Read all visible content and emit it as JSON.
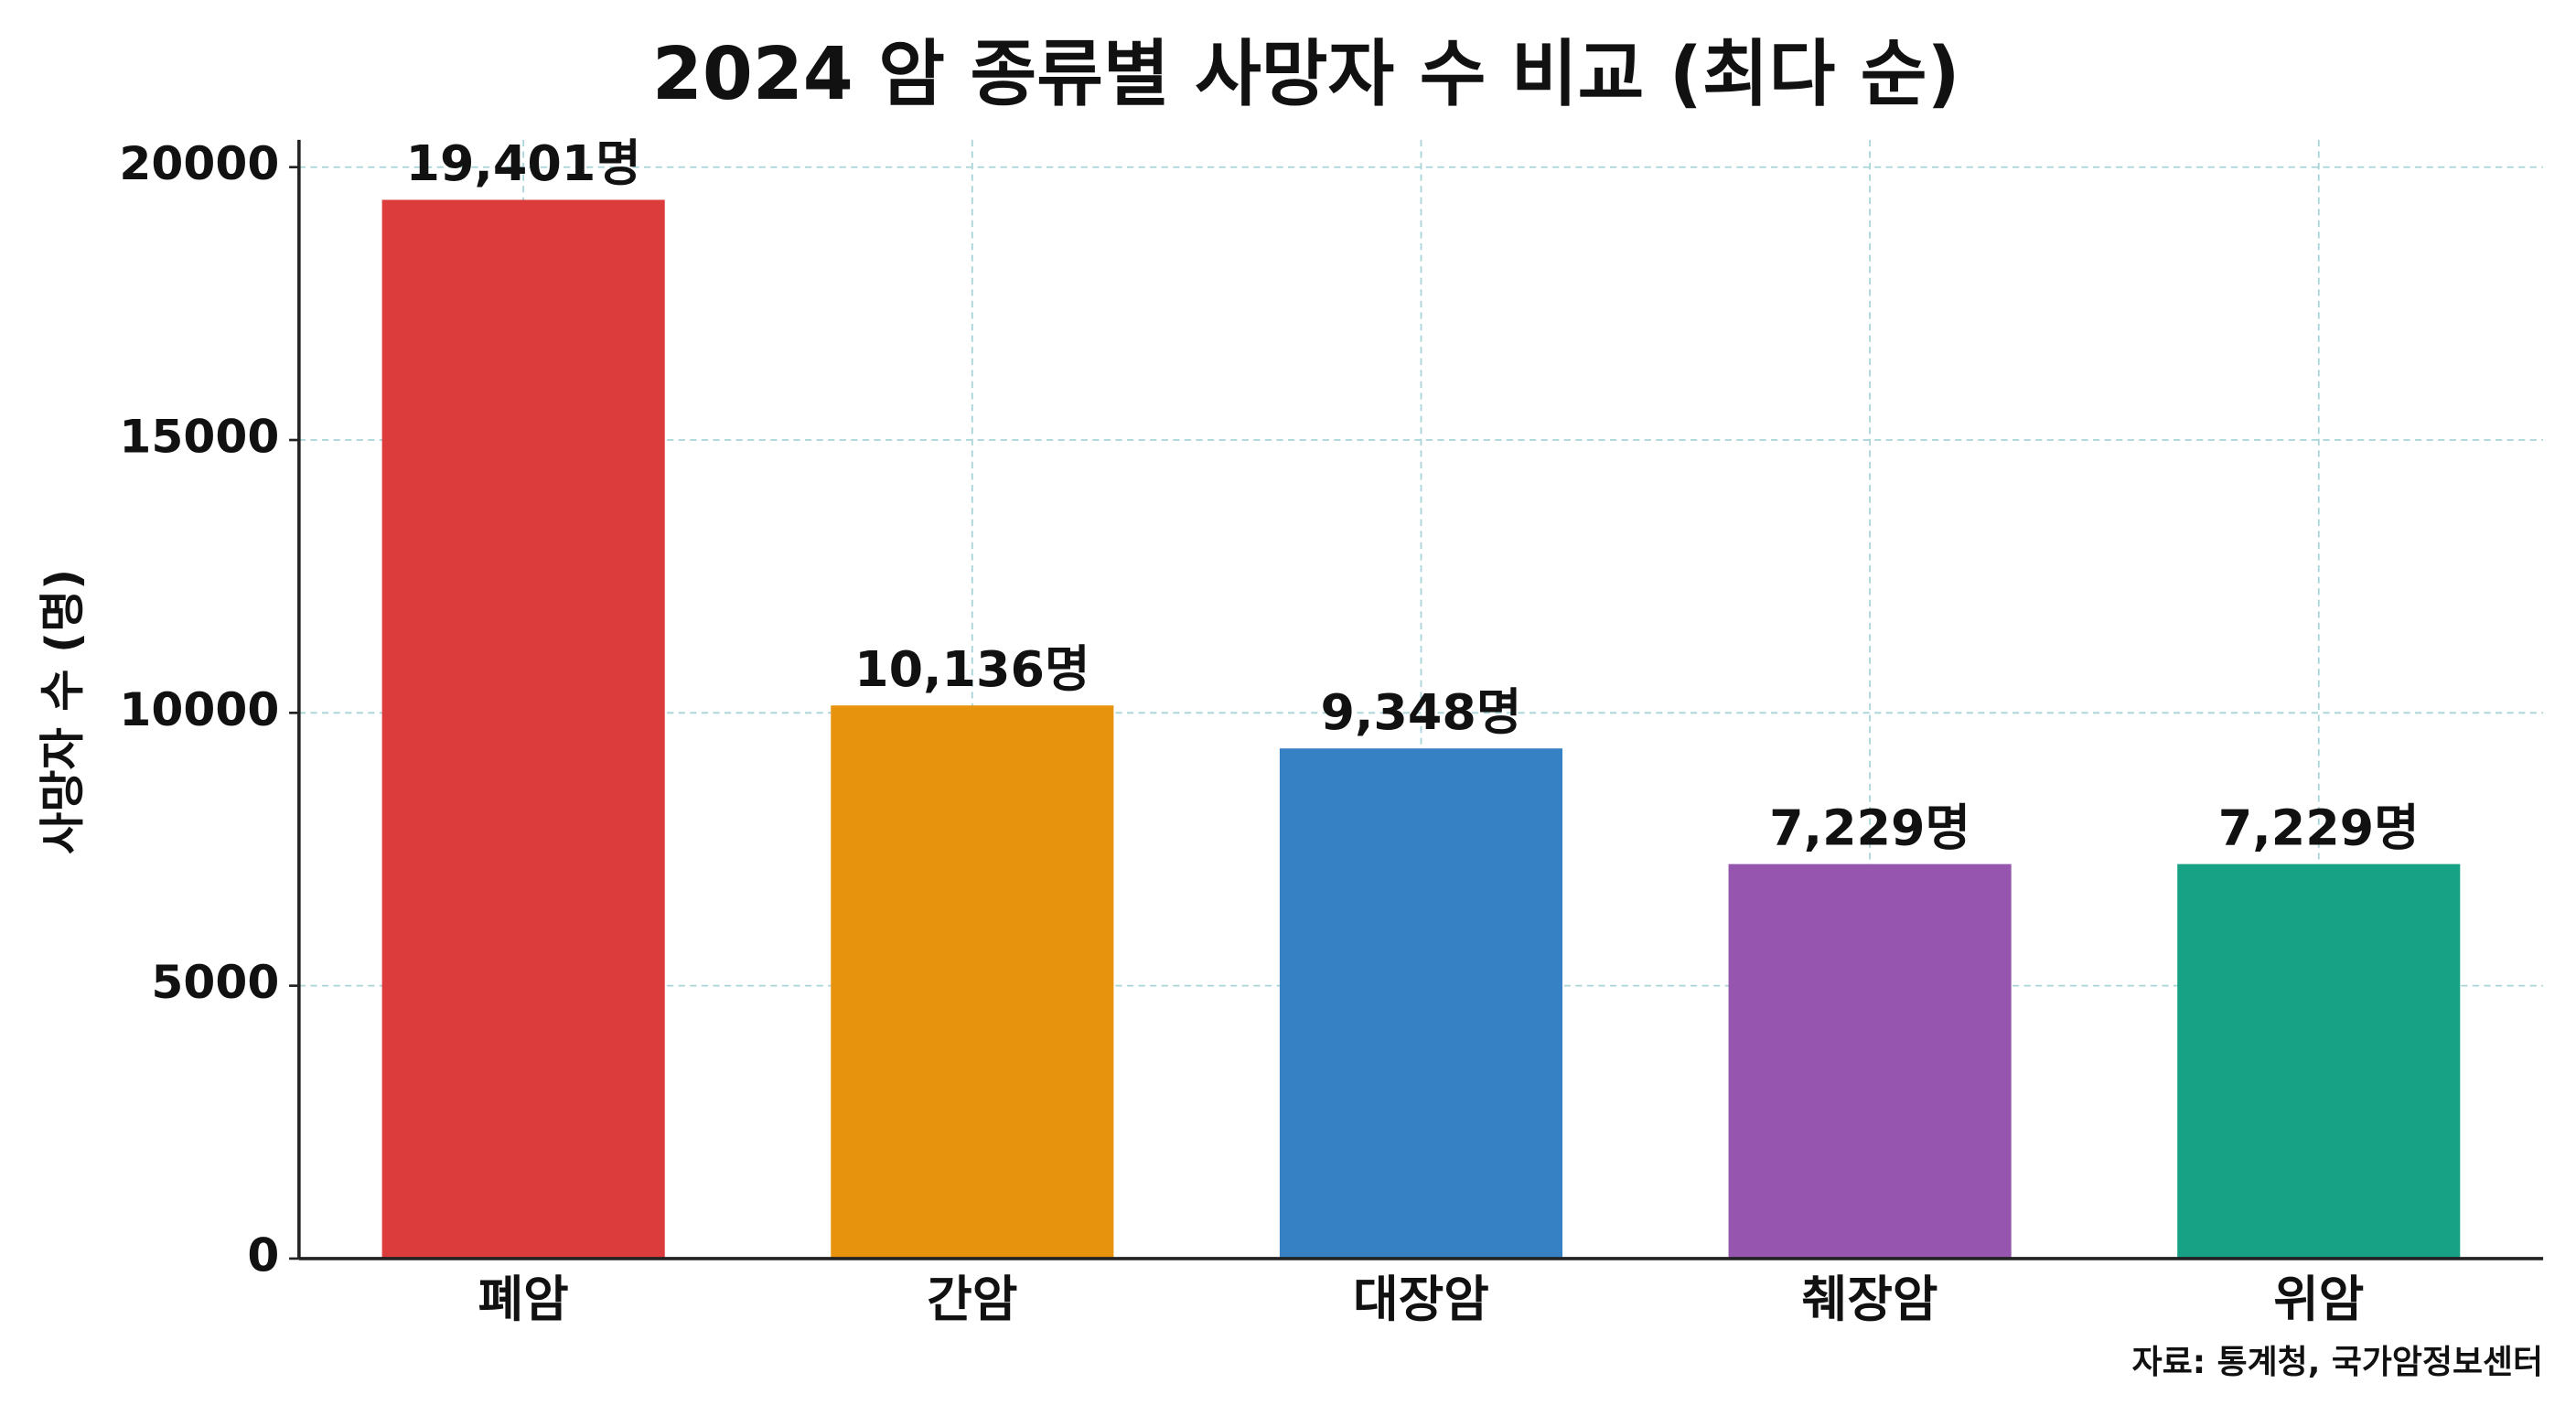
{
  "chart_data": {
    "type": "bar",
    "title": "2024 암 종류별 사망자 수 비교 (최다 순)",
    "y_label": "사망자 수 (명)",
    "source": "자료: 통계청, 국가암정보센터",
    "categories": [
      "폐암",
      "간암",
      "대장암",
      "췌장암",
      "위암"
    ],
    "values": [
      19401,
      10136,
      9348,
      7229,
      7229
    ],
    "value_labels": [
      "19,401명",
      "10,136명",
      "9,348명",
      "7,229명",
      "7,229명"
    ],
    "colors": [
      "#dc3d3c",
      "#e8930e",
      "#3581c3",
      "#9656b0",
      "#17a185"
    ],
    "ylim": [
      0,
      20500
    ],
    "yticks": [
      0,
      5000,
      10000,
      15000,
      20000
    ],
    "grid": true
  }
}
